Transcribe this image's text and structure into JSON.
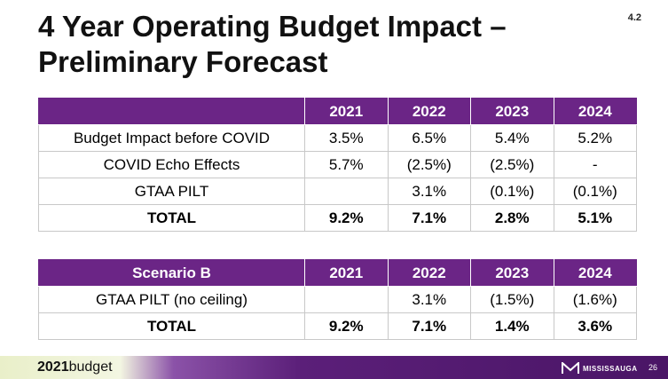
{
  "slide": {
    "title_line1": "4 Year Operating Budget Impact –",
    "title_line2": "Preliminary Forecast",
    "reference": "4.2"
  },
  "table_main": {
    "header": [
      "",
      "2021",
      "2022",
      "2023",
      "2024"
    ],
    "rows": [
      [
        "Budget Impact before COVID",
        "3.5%",
        "6.5%",
        "5.4%",
        "5.2%"
      ],
      [
        "COVID Echo Effects",
        "5.7%",
        "(2.5%)",
        "(2.5%)",
        "-"
      ],
      [
        "GTAA PILT",
        "",
        "3.1%",
        "(0.1%)",
        "(0.1%)"
      ],
      [
        "TOTAL",
        "9.2%",
        "7.1%",
        "2.8%",
        "5.1%"
      ]
    ]
  },
  "table_scenario": {
    "header": [
      "Scenario B",
      "2021",
      "2022",
      "2023",
      "2024"
    ],
    "rows": [
      [
        "GTAA PILT (no ceiling)",
        "",
        "3.1%",
        "(1.5%)",
        "(1.6%)"
      ],
      [
        "TOTAL",
        "9.2%",
        "7.1%",
        "1.4%",
        "3.6%"
      ]
    ]
  },
  "footer": {
    "budget_year": "2021",
    "budget_word": "budget",
    "logo_text": "MISSISSAUGA",
    "page_number": "26"
  },
  "colors": {
    "header_purple": "#6b2586",
    "footer_purple": "#4a1566",
    "footer_green": "#e9efc9"
  }
}
